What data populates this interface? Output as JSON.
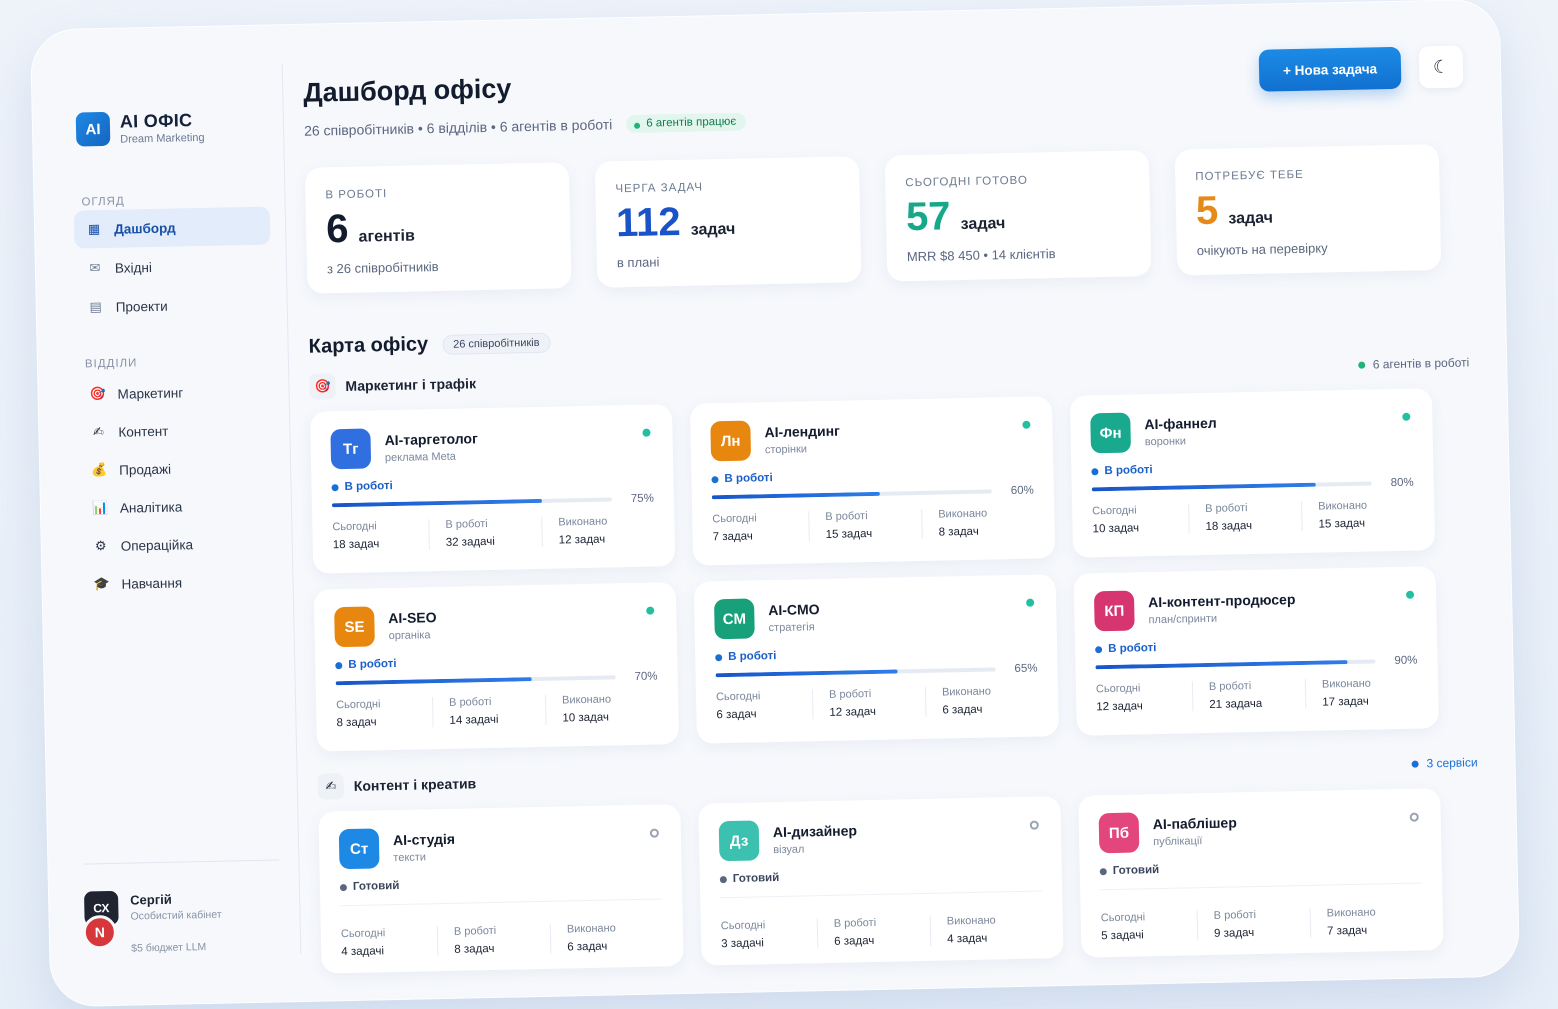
{
  "brand": {
    "logo": "AI",
    "title": "AI ОФІС",
    "subtitle": "Dream Marketing"
  },
  "sidebar": {
    "overview_label": "ОГЛЯД",
    "overview_items": [
      {
        "label": "Дашборд",
        "icon": "grid-icon",
        "active": true
      },
      {
        "label": "Вхідні",
        "icon": "mail-icon",
        "active": false
      },
      {
        "label": "Проекти",
        "icon": "list-icon",
        "active": false
      }
    ],
    "departments_label": "ВІДДІЛИ",
    "department_items": [
      {
        "label": "Маркетинг",
        "icon": "target-icon",
        "glyph": "🎯"
      },
      {
        "label": "Контент",
        "icon": "pencil-icon",
        "glyph": "✍"
      },
      {
        "label": "Продажі",
        "icon": "money-bag-icon",
        "glyph": "💰"
      },
      {
        "label": "Аналітика",
        "icon": "bar-chart-icon",
        "glyph": "📊"
      },
      {
        "label": "Операційка",
        "icon": "gear-icon",
        "glyph": "⚙"
      },
      {
        "label": "Навчання",
        "icon": "graduation-cap-icon",
        "glyph": "🎓"
      }
    ]
  },
  "user": {
    "initials": "СХ",
    "badge": "N",
    "name": "Сергій",
    "role": "Особистий кабінет",
    "budget": "$5 бюджет LLM"
  },
  "header": {
    "title": "Дашборд офісу",
    "subtitle": "26 співробітників • 6 відділів • 6 агентів в роботі",
    "status_pill": "6 агентів працює",
    "new_task_button": "+ Нова задача",
    "theme_icon": "☾"
  },
  "stats": [
    {
      "label": "В РОБОТІ",
      "number": "6",
      "unit": "агентів",
      "foot": "з 26 співробітників",
      "color": "#131c2e"
    },
    {
      "label": "ЧЕРГА ЗАДАЧ",
      "number": "112",
      "unit": "задач",
      "foot": "в плані",
      "color": "#1a52c8"
    },
    {
      "label": "СЬОГОДНІ ГОТОВО",
      "number": "57",
      "unit": "задач",
      "foot": "MRR $8 450 • 14 клієнтів",
      "color": "#17a88a"
    },
    {
      "label": "ПОТРЕБУЄ ТЕБЕ",
      "number": "5",
      "unit": "задач",
      "foot": "очікують на перевірку",
      "color": "#e4891a"
    }
  ],
  "office_map": {
    "title": "Карта офісу",
    "chip": "26 співробітників"
  },
  "groups": [
    {
      "title": "Маркетинг і трафік",
      "icon": "target-icon",
      "glyph": "🎯",
      "meta": "6 агентів в роботі",
      "meta_color": "#21b47a",
      "meta_text_color": "#5b6780",
      "agents": [
        {
          "initials": "Тг",
          "name": "AI-таргетолог",
          "role": "реклама Meta",
          "color": "#2f6fe0",
          "state": "В роботі",
          "progress": 0.75,
          "progress_label": "75%",
          "today_label": "Сьогодні",
          "today": "18 задач",
          "inwork_label": "В роботі",
          "inwork": "32 задачі",
          "done_label": "Виконано",
          "done": "12 задач"
        },
        {
          "initials": "Лн",
          "name": "AI-лендинг",
          "role": "сторінки",
          "color": "#e8870f",
          "state": "В роботі",
          "progress": 0.6,
          "progress_label": "60%",
          "today_label": "Сьогодні",
          "today": "7 задач",
          "inwork_label": "В роботі",
          "inwork": "15 задач",
          "done_label": "Виконано",
          "done": "8 задач"
        },
        {
          "initials": "Фн",
          "name": "AI-фаннел",
          "role": "воронки",
          "color": "#19a98e",
          "state": "В роботі",
          "progress": 0.8,
          "progress_label": "80%",
          "today_label": "Сьогодні",
          "today": "10 задач",
          "inwork_label": "В роботі",
          "inwork": "18 задач",
          "done_label": "Виконано",
          "done": "15 задач"
        },
        {
          "initials": "SE",
          "name": "AI-SEO",
          "role": "органіка",
          "color": "#e8870f",
          "state": "В роботі",
          "progress": 0.7,
          "progress_label": "70%",
          "today_label": "Сьогодні",
          "today": "8 задач",
          "inwork_label": "В роботі",
          "inwork": "14 задачі",
          "done_label": "Виконано",
          "done": "10 задач"
        },
        {
          "initials": "CM",
          "name": "AI-CMO",
          "role": "стратегія",
          "color": "#17a079",
          "state": "В роботі",
          "progress": 0.65,
          "progress_label": "65%",
          "today_label": "Сьогодні",
          "today": "6 задач",
          "inwork_label": "В роботі",
          "inwork": "12 задач",
          "done_label": "Виконано",
          "done": "6 задач"
        },
        {
          "initials": "КП",
          "name": "AI-контент-продюсер",
          "role": "план/спринти",
          "color": "#d6356f",
          "state": "В роботі",
          "progress": 0.9,
          "progress_label": "90%",
          "today_label": "Сьогодні",
          "today": "12 задач",
          "inwork_label": "В роботі",
          "inwork": "21 задача",
          "done_label": "Виконано",
          "done": "17 задач"
        }
      ]
    },
    {
      "title": "Контент і креатив",
      "icon": "pencil-icon",
      "glyph": "✍",
      "meta": "3 сервіси",
      "meta_color": "#1a6fd6",
      "meta_text_color": "#1a6fd6",
      "agents": [
        {
          "initials": "Ст",
          "name": "AI-студія",
          "role": "тексти",
          "color": "#1e88e5",
          "state": "Готовий",
          "today_label": "Сьогодні",
          "today": "4 задачі",
          "inwork_label": "В роботі",
          "inwork": "8 задач",
          "done_label": "Виконано",
          "done": "6 задач"
        },
        {
          "initials": "Дз",
          "name": "AI-дизайнер",
          "role": "візуал",
          "color": "#3cc0b0",
          "state": "Готовий",
          "today_label": "Сьогодні",
          "today": "3 задачі",
          "inwork_label": "В роботі",
          "inwork": "6 задач",
          "done_label": "Виконано",
          "done": "4 задач"
        },
        {
          "initials": "Пб",
          "name": "AI-паблішер",
          "role": "публікації",
          "color": "#e2467c",
          "state": "Готовий",
          "today_label": "Сьогодні",
          "today": "5 задачі",
          "inwork_label": "В роботі",
          "inwork": "9 задач",
          "done_label": "Виконано",
          "done": "7 задач"
        }
      ]
    }
  ]
}
